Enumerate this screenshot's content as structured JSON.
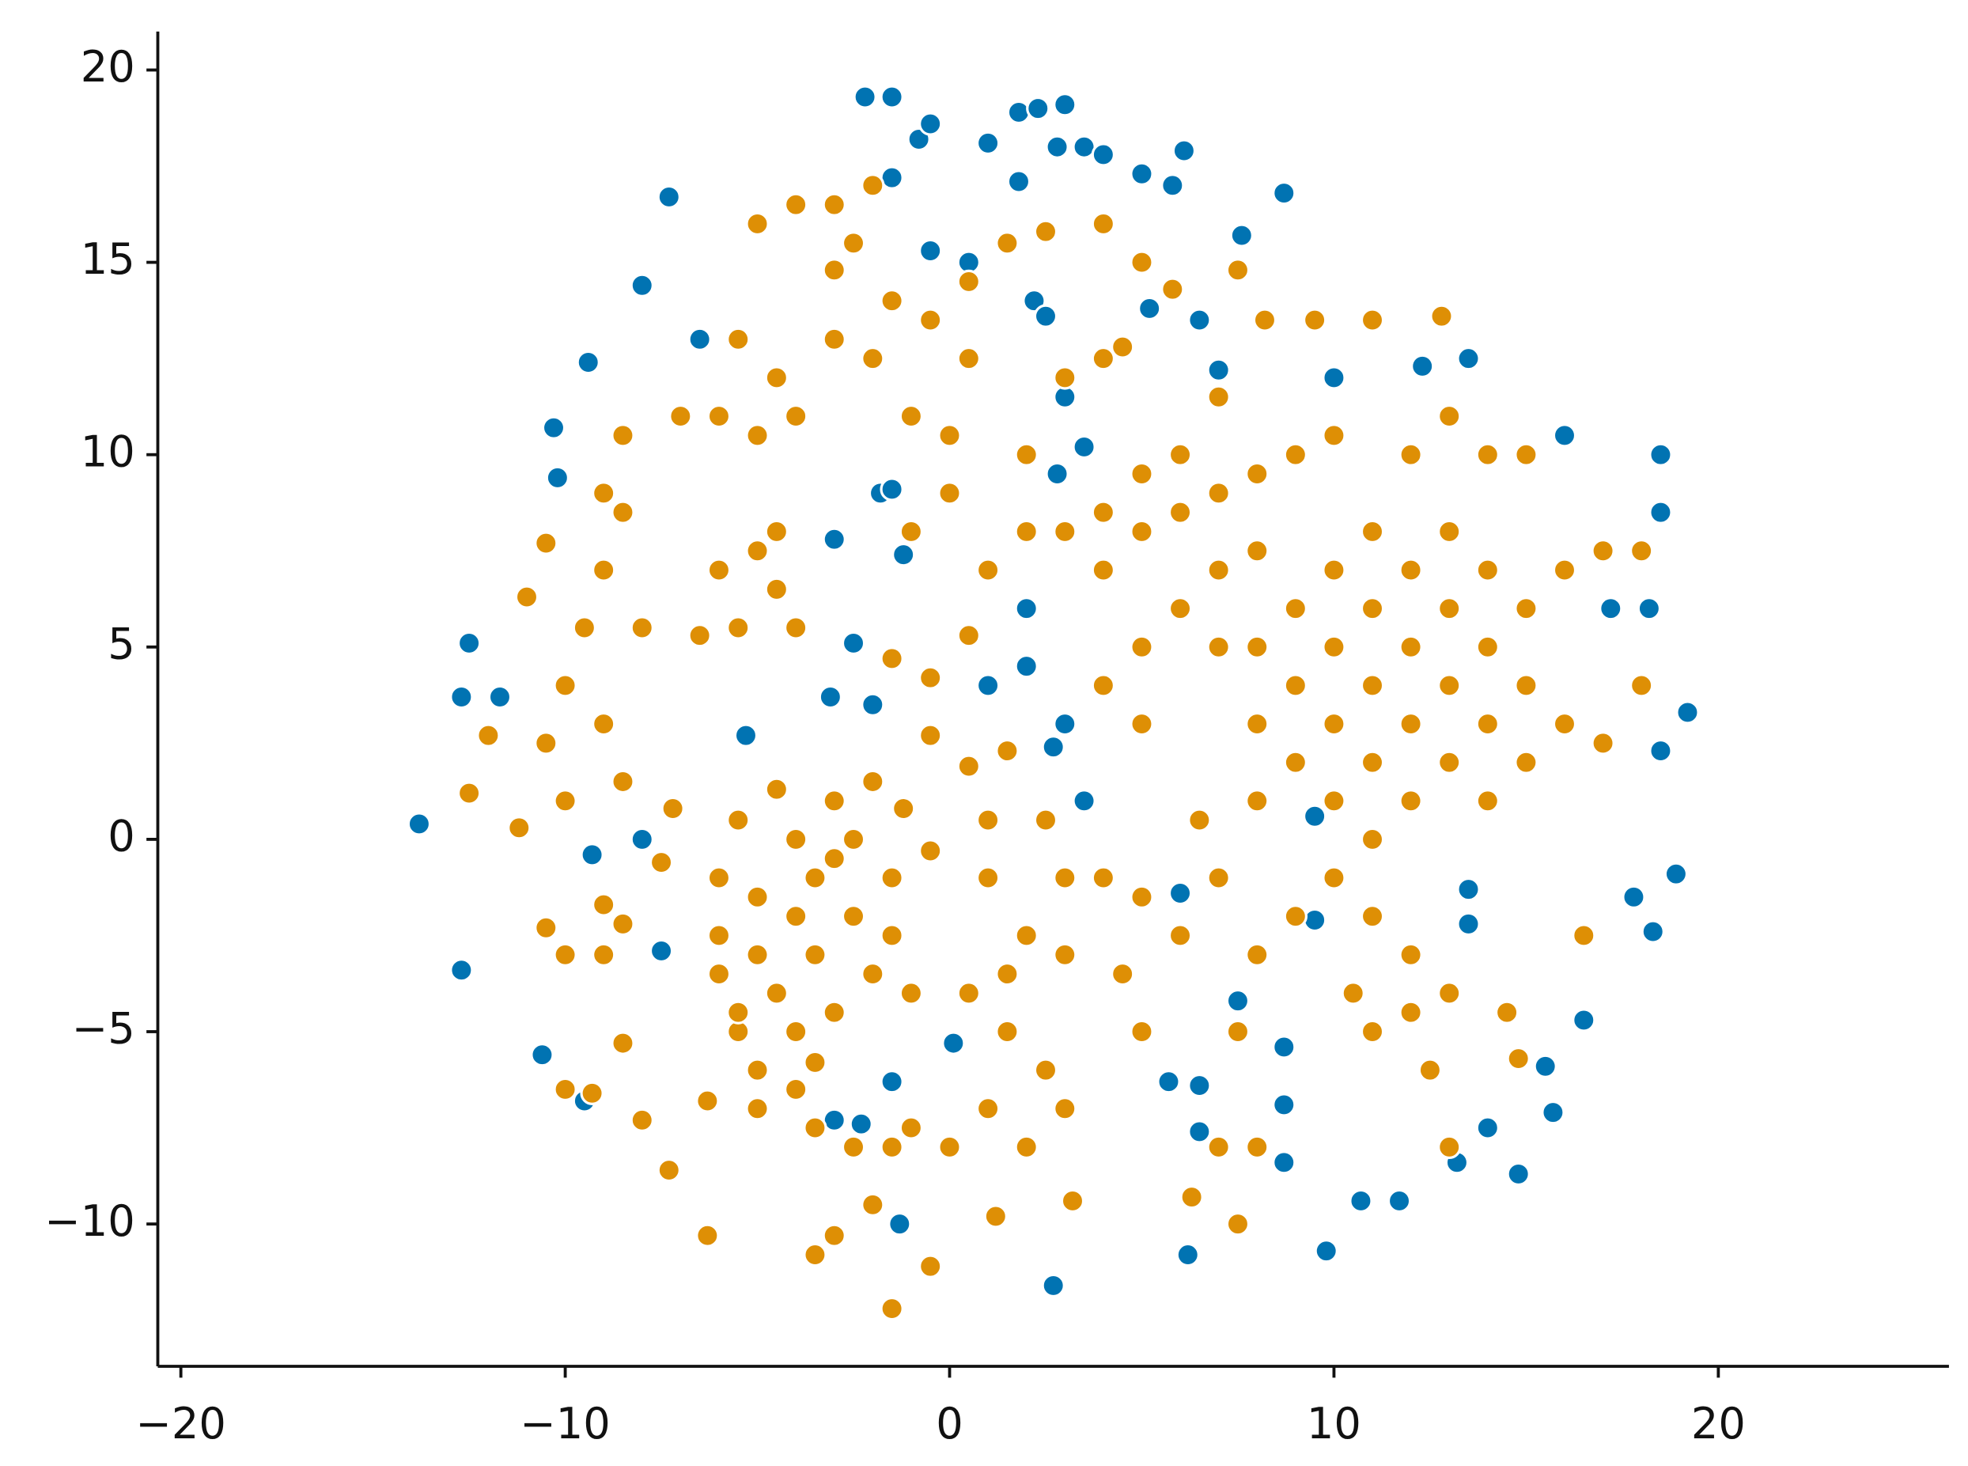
{
  "chart_data": {
    "type": "scatter",
    "xlim": [
      -20.6,
      26
    ],
    "ylim": [
      -13.7,
      21
    ],
    "xticks": [
      {
        "value": -20,
        "label": "−20"
      },
      {
        "value": -10,
        "label": "−10"
      },
      0,
      10,
      20
    ],
    "yticks": [
      {
        "value": -10,
        "label": "−10"
      },
      {
        "value": -5,
        "label": "−5"
      },
      0,
      5,
      10,
      15,
      20
    ],
    "series": [
      {
        "color": "#0173b2",
        "x": [
          -1.5,
          -2.2,
          -1.5,
          -0.8,
          -0.5,
          1.8,
          2.3,
          3,
          2.8,
          3.5,
          4,
          5,
          5.8,
          6.1,
          1,
          1.8,
          -7.3,
          -8,
          -9.4,
          -10.3,
          -10.2,
          -6.5,
          8.7,
          7.6,
          5.2,
          6.5,
          7,
          10,
          12.3,
          13.5,
          -0.5,
          0.5,
          2.2,
          2.5,
          3,
          3.5,
          2.8,
          -1.8,
          -1.5,
          -3,
          -1.2,
          2,
          1,
          2,
          3,
          2.7,
          3.5,
          -2.5,
          -2,
          -3.1,
          -12.5,
          -12.7,
          -11.7,
          -13.8,
          -9.3,
          -8,
          -5.3,
          -12.7,
          -10.6,
          -7.5,
          6,
          9.5,
          9.5,
          13.5,
          13.5,
          17.8,
          18.3,
          18.9,
          19.2,
          18.5,
          18.2,
          17.2,
          18.5,
          18.5,
          16,
          -1.3,
          2.7,
          6.2,
          9.8,
          10.7,
          11.7,
          14.8,
          15.7,
          15.5,
          16.5,
          8.7,
          8.7,
          6.5,
          5.7,
          6.5,
          7.5,
          8.7,
          0.1,
          -3,
          -2.3,
          -1.5,
          13.2,
          14,
          -9.5
        ],
        "values": [
          19.3,
          19.3,
          17.2,
          18.2,
          18.6,
          18.9,
          19,
          19.1,
          18,
          18,
          17.8,
          17.3,
          17,
          17.9,
          18.1,
          17.1,
          16.7,
          14.4,
          12.4,
          10.7,
          9.4,
          13,
          16.8,
          15.7,
          13.8,
          13.5,
          12.2,
          12,
          12.3,
          12.5,
          15.3,
          15,
          14,
          13.6,
          11.5,
          10.2,
          9.5,
          9,
          9.1,
          7.8,
          7.4,
          6,
          4,
          4.5,
          3,
          2.4,
          1,
          5.1,
          3.5,
          3.7,
          5.1,
          3.7,
          3.7,
          0.4,
          -0.4,
          0,
          2.7,
          -3.4,
          -5.6,
          -2.9,
          -1.4,
          0.6,
          -2.1,
          -1.3,
          -2.2,
          -1.5,
          -2.4,
          -0.9,
          3.3,
          2.3,
          6,
          6,
          8.5,
          10,
          10.5,
          -10,
          -11.6,
          -10.8,
          -10.7,
          -9.4,
          -9.4,
          -8.7,
          -7.1,
          -5.9,
          -4.7,
          -5.4,
          -6.9,
          -6.4,
          -6.3,
          -7.6,
          -4.2,
          -8.4,
          -5.3,
          -7.3,
          -7.4,
          -6.3,
          -8.4,
          -7.5,
          -6.8
        ]
      },
      {
        "color": "#de8f05",
        "x": [
          -6,
          -6,
          -5.5,
          -5,
          -5,
          -4.5,
          -4,
          -4,
          -4,
          -3.5,
          -3.5,
          -3,
          -3,
          -2.5,
          -2.5,
          -2,
          -2,
          -1.5,
          -1.5,
          -5.5,
          -5,
          -4,
          -3.5,
          -6,
          -5.5,
          -1.2,
          -4.5,
          -3,
          6,
          7,
          8,
          8,
          8,
          9,
          9,
          9,
          10,
          10,
          10,
          10,
          10,
          11,
          11,
          11,
          11,
          11,
          12,
          12,
          12,
          12,
          12,
          13,
          13,
          13,
          13,
          14,
          14,
          14,
          14,
          15,
          15,
          15,
          16,
          16,
          17,
          18,
          18,
          17,
          16.5,
          11,
          12,
          10.5,
          7,
          5,
          5,
          4,
          4,
          5,
          6,
          7,
          8,
          9,
          10,
          11,
          12,
          13,
          14,
          15,
          6.5,
          8,
          7,
          9,
          6,
          8,
          5,
          4,
          4.5,
          5,
          7.5,
          8,
          7,
          7.5,
          13,
          14.5,
          12.5,
          13,
          14.8,
          -10.5,
          -10,
          -9.5,
          -9,
          -9,
          -8.5,
          -8.5,
          -9,
          -8.5,
          -10,
          -11,
          -11.2,
          -10.5,
          -12.5,
          -12,
          -8,
          -6,
          -5.5,
          -5,
          -4.5,
          -4,
          -4.5,
          -6.5,
          -7,
          -6,
          -5,
          -4,
          -5.5,
          -4.5,
          -3,
          -2,
          -1,
          0,
          -0.5,
          0.5,
          -5,
          -4,
          -3,
          -2,
          -2.5,
          -3,
          -1.5,
          0.5,
          1.5,
          2.5,
          4,
          4,
          5,
          5.8,
          7.5,
          8.2,
          9.5,
          11,
          12.8,
          -1,
          0,
          1,
          2,
          3,
          2.5,
          1.5,
          -1,
          0.5,
          -1.5,
          -2,
          -3,
          -3.5,
          -1.5,
          -0.5,
          1.2,
          3.2,
          -6.3,
          -6.3,
          -5,
          -7.3,
          -8,
          -9.3,
          -10,
          -8.5,
          -9,
          -10,
          -10.5,
          -8.5,
          -9,
          -7.5,
          -7.2,
          6.3,
          -0.5,
          0.5,
          1.5,
          -0.5,
          0.5,
          -1.5,
          -1,
          0,
          1,
          2,
          3,
          4,
          5,
          6,
          7,
          2,
          3,
          4.5,
          -3.5,
          -2.5,
          1,
          1,
          2.5,
          3,
          2,
          1.5,
          3,
          -0.5
        ],
        "values": [
          -1,
          -2.5,
          0.5,
          -1.5,
          -3,
          -4,
          -5,
          -2,
          0,
          -1,
          -3,
          -4.5,
          1,
          -2,
          0,
          -3.5,
          1.5,
          -1,
          -2.5,
          -5,
          -6,
          -6.5,
          -5.8,
          -3.5,
          -4.5,
          0.8,
          1.3,
          -0.5,
          6,
          7,
          5,
          3,
          7.5,
          6,
          4,
          2,
          7,
          5,
          3,
          1,
          -1,
          6,
          4,
          2,
          0,
          -2,
          7,
          5,
          3,
          1,
          -3,
          6,
          4,
          2,
          8,
          5,
          3,
          7,
          1,
          6,
          4,
          2,
          7,
          3,
          7.5,
          7.5,
          4,
          2.5,
          -2.5,
          -5,
          -4.5,
          -4,
          5,
          5,
          3,
          4,
          7,
          8,
          8.5,
          9,
          9.5,
          10,
          10.5,
          8,
          10,
          11,
          10,
          10,
          0.5,
          1,
          -1,
          -2,
          -2.5,
          -3,
          -1.5,
          -1,
          -3.5,
          -5,
          -5,
          -8,
          -8,
          -10,
          -4,
          -4.5,
          -6,
          -8,
          -5.7,
          2.5,
          4,
          5.5,
          7,
          9,
          10.5,
          8.5,
          3,
          1.5,
          1,
          6.3,
          0.3,
          7.7,
          1.2,
          2.7,
          5.5,
          7,
          5.5,
          7.5,
          6.5,
          5.5,
          8,
          5.3,
          11,
          11,
          10.5,
          11,
          13,
          12,
          13,
          12.5,
          11,
          10.5,
          13.5,
          12.5,
          16,
          16.5,
          16.5,
          17,
          15.5,
          14.8,
          14,
          14.5,
          15.5,
          15.8,
          16,
          12.5,
          15,
          14.3,
          14.8,
          13.5,
          13.5,
          13.5,
          13.6,
          -7.5,
          -8,
          -7,
          -8,
          -7,
          -6,
          -5,
          -4,
          -4,
          -8,
          -9.5,
          -10.3,
          -10.8,
          -12.2,
          -11.1,
          -9.8,
          -9.4,
          -10.3,
          -6.8,
          -7,
          -8.6,
          -7.3,
          -6.6,
          -6.5,
          -5.3,
          -3,
          -3,
          -2.3,
          -2.2,
          -1.7,
          -0.6,
          0.8,
          -9.3,
          2.7,
          1.9,
          2.3,
          4.2,
          5.3,
          4.7,
          8,
          9,
          7,
          8,
          8,
          8.5,
          9.5,
          10,
          11.5,
          10,
          12,
          12.8,
          -7.5,
          -8,
          -1,
          0.5,
          0.5,
          -1,
          -2.5,
          -3.5,
          -3,
          -0.3
        ]
      }
    ]
  }
}
